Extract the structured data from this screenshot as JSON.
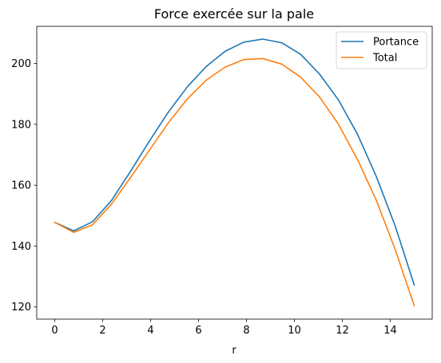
{
  "chart_data": {
    "type": "line",
    "title": "Force exercée sur la pale",
    "xlabel": "r",
    "ylabel": "",
    "xlim": [
      -0.75,
      15.75
    ],
    "ylim": [
      116.0,
      212.2
    ],
    "xticks": [
      0,
      2,
      4,
      6,
      8,
      10,
      12,
      14
    ],
    "yticks": [
      120,
      140,
      160,
      180,
      200
    ],
    "grid": false,
    "legend_position": "top-right",
    "x": [
      0,
      0.79,
      1.58,
      2.37,
      3.16,
      3.95,
      4.74,
      5.53,
      6.32,
      7.11,
      7.89,
      8.68,
      9.47,
      10.26,
      11.05,
      11.84,
      12.63,
      13.42,
      14.21,
      15.0
    ],
    "series": [
      {
        "name": "Portance",
        "color": "#1f77b4",
        "values": [
          147.8,
          145.0,
          148.0,
          155.0,
          164.5,
          174.5,
          184.0,
          192.3,
          199.0,
          204.0,
          207.0,
          208.0,
          206.8,
          203.0,
          196.5,
          188.0,
          176.8,
          162.8,
          146.5,
          127.2
        ]
      },
      {
        "name": "Total",
        "color": "#ff7f0e",
        "values": [
          147.8,
          144.5,
          147.0,
          153.8,
          162.5,
          171.5,
          180.5,
          188.3,
          194.5,
          198.8,
          201.3,
          201.6,
          199.8,
          195.5,
          189.0,
          180.0,
          168.5,
          155.0,
          138.8,
          120.4
        ]
      }
    ]
  }
}
